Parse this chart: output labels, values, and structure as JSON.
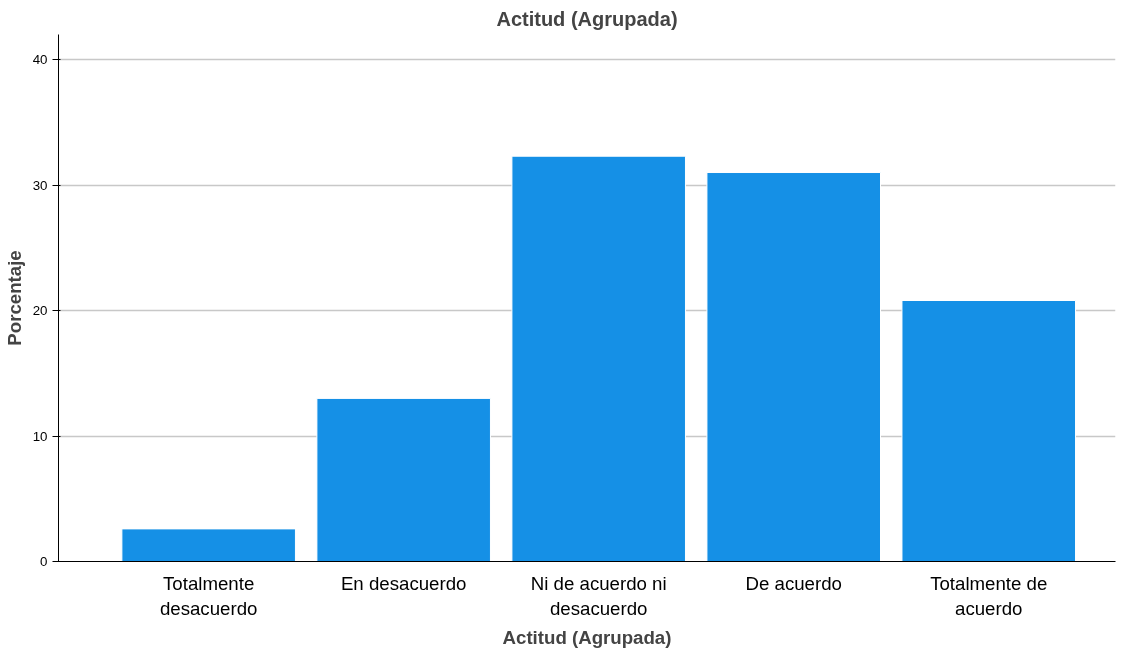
{
  "chart_data": {
    "type": "bar",
    "title": "Actitud (Agrupada)",
    "xlabel": "Actitud (Agrupada)",
    "ylabel": "Porcentaje",
    "categories": [
      "Totalmente desacuerdo",
      "En desacuerdo",
      "Ni de acuerdo ni desacuerdo",
      "De acuerdo",
      "Totalmente de acuerdo"
    ],
    "values": [
      2.6,
      13.0,
      32.3,
      31.0,
      20.8
    ],
    "color": "#1590e6",
    "ylim": [
      0,
      42
    ],
    "yticks": [
      0,
      10,
      20,
      30,
      40
    ],
    "grid": "y"
  }
}
